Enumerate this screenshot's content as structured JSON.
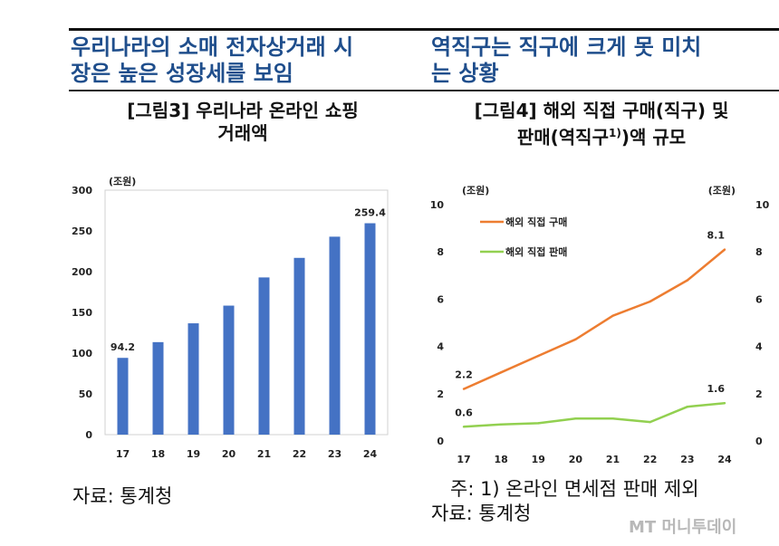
{
  "headlines": {
    "left_line1": "우리나라의 소매 전자상거래 시",
    "left_line2": "장은 높은 성장세를 보임",
    "right_line1": "역직구는 직구에 크게 못 미치",
    "right_line2": "는 상황"
  },
  "figures": {
    "left_title_line1": "[그림3] 우리나라 온라인 쇼핑",
    "left_title_line2": "거래액",
    "right_title_line1": "[그림4] 해외 직접 구매(직구) 및",
    "right_title_line2_a": "판매(역직구",
    "right_title_line2_sup": "1)",
    "right_title_line2_b": ")액 규모"
  },
  "footer": {
    "left_source": "자료: 통계청",
    "right_note": "주: 1) 온라인 면세점 판매 제외",
    "right_source": "자료: 통계청",
    "watermark": "MT 머니투데이"
  },
  "chart_data": [
    {
      "type": "bar",
      "title": "",
      "unit_label": "(조원)",
      "categories": [
        "17",
        "18",
        "19",
        "20",
        "21",
        "22",
        "23",
        "24"
      ],
      "values": [
        94.2,
        113.5,
        136.6,
        158.3,
        192.9,
        216.9,
        242.9,
        259.4
      ],
      "data_labels": {
        "0": "94.2",
        "7": "259.4"
      },
      "ylim": [
        0,
        300
      ],
      "yticks": [
        0,
        50,
        100,
        150,
        200,
        250,
        300
      ],
      "color": "#4472c4",
      "grid": false,
      "legend": "none"
    },
    {
      "type": "line",
      "title": "",
      "unit_label_left": "(조원)",
      "unit_label_right": "(조원)",
      "x": [
        "17",
        "18",
        "19",
        "20",
        "21",
        "22",
        "23",
        "24"
      ],
      "series": [
        {
          "name": "해외 직접 구매",
          "values": [
            2.2,
            2.9,
            3.6,
            4.3,
            5.3,
            5.9,
            6.8,
            8.1
          ],
          "color": "#ed7d31",
          "labels": {
            "0": "2.2",
            "7": "8.1"
          }
        },
        {
          "name": "해외 직접 판매",
          "values": [
            0.6,
            0.7,
            0.75,
            0.95,
            0.95,
            0.8,
            1.45,
            1.6
          ],
          "color": "#92d050",
          "labels": {
            "0": "0.6",
            "7": "1.6"
          }
        }
      ],
      "ylim": [
        0,
        10
      ],
      "yticks": [
        0,
        2,
        4,
        6,
        8,
        10
      ],
      "grid": false,
      "legend": "top-left"
    }
  ]
}
